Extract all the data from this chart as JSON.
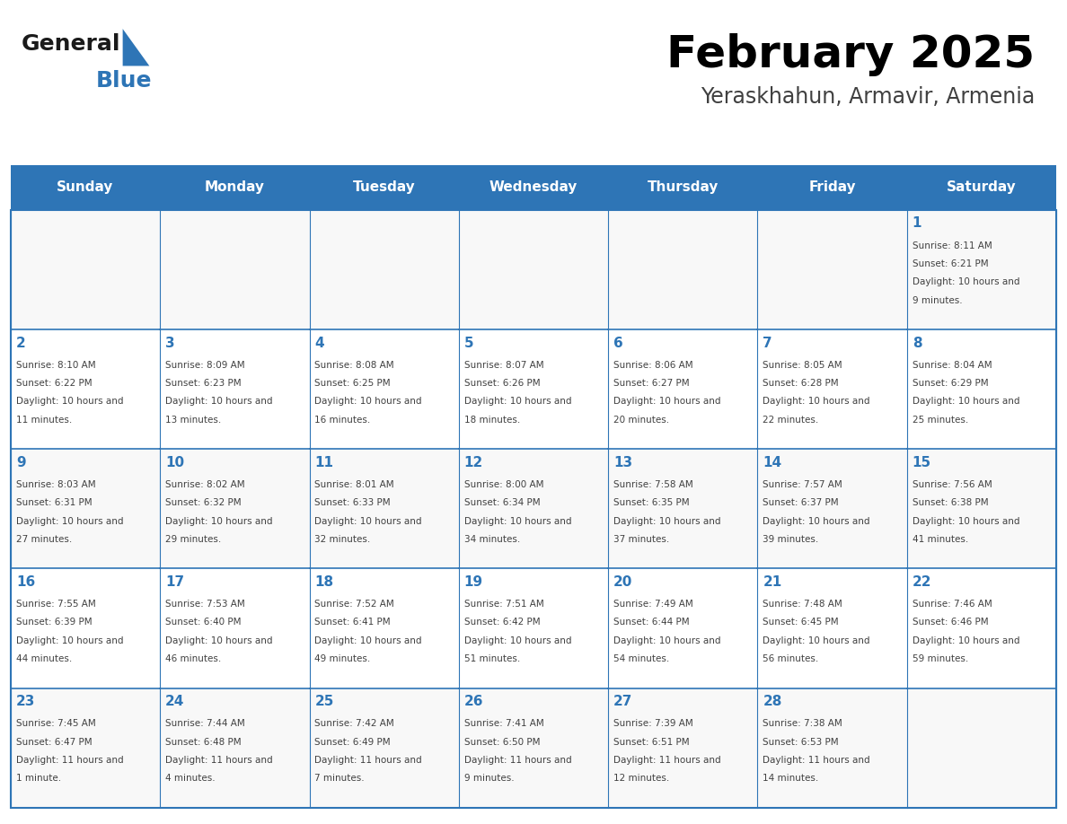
{
  "title": "February 2025",
  "subtitle": "Yeraskhahun, Armavir, Armenia",
  "header_bg": "#2E75B6",
  "header_text_color": "#FFFFFF",
  "day_names": [
    "Sunday",
    "Monday",
    "Tuesday",
    "Wednesday",
    "Thursday",
    "Friday",
    "Saturday"
  ],
  "cell_bg": "#FFFFFF",
  "cell_alt_bg": "#F2F2F2",
  "border_color": "#2E75B6",
  "day_num_color": "#2E75B6",
  "text_color": "#404040",
  "title_color": "#000000",
  "subtitle_color": "#404040",
  "logo_general_color": "#1A1A1A",
  "logo_blue_color": "#2E75B6",
  "calendar": [
    [
      null,
      null,
      null,
      null,
      null,
      null,
      {
        "day": 1,
        "sunrise": "8:11 AM",
        "sunset": "6:21 PM",
        "daylight": "10 hours and 9 minutes."
      }
    ],
    [
      {
        "day": 2,
        "sunrise": "8:10 AM",
        "sunset": "6:22 PM",
        "daylight": "10 hours and 11 minutes."
      },
      {
        "day": 3,
        "sunrise": "8:09 AM",
        "sunset": "6:23 PM",
        "daylight": "10 hours and 13 minutes."
      },
      {
        "day": 4,
        "sunrise": "8:08 AM",
        "sunset": "6:25 PM",
        "daylight": "10 hours and 16 minutes."
      },
      {
        "day": 5,
        "sunrise": "8:07 AM",
        "sunset": "6:26 PM",
        "daylight": "10 hours and 18 minutes."
      },
      {
        "day": 6,
        "sunrise": "8:06 AM",
        "sunset": "6:27 PM",
        "daylight": "10 hours and 20 minutes."
      },
      {
        "day": 7,
        "sunrise": "8:05 AM",
        "sunset": "6:28 PM",
        "daylight": "10 hours and 22 minutes."
      },
      {
        "day": 8,
        "sunrise": "8:04 AM",
        "sunset": "6:29 PM",
        "daylight": "10 hours and 25 minutes."
      }
    ],
    [
      {
        "day": 9,
        "sunrise": "8:03 AM",
        "sunset": "6:31 PM",
        "daylight": "10 hours and 27 minutes."
      },
      {
        "day": 10,
        "sunrise": "8:02 AM",
        "sunset": "6:32 PM",
        "daylight": "10 hours and 29 minutes."
      },
      {
        "day": 11,
        "sunrise": "8:01 AM",
        "sunset": "6:33 PM",
        "daylight": "10 hours and 32 minutes."
      },
      {
        "day": 12,
        "sunrise": "8:00 AM",
        "sunset": "6:34 PM",
        "daylight": "10 hours and 34 minutes."
      },
      {
        "day": 13,
        "sunrise": "7:58 AM",
        "sunset": "6:35 PM",
        "daylight": "10 hours and 37 minutes."
      },
      {
        "day": 14,
        "sunrise": "7:57 AM",
        "sunset": "6:37 PM",
        "daylight": "10 hours and 39 minutes."
      },
      {
        "day": 15,
        "sunrise": "7:56 AM",
        "sunset": "6:38 PM",
        "daylight": "10 hours and 41 minutes."
      }
    ],
    [
      {
        "day": 16,
        "sunrise": "7:55 AM",
        "sunset": "6:39 PM",
        "daylight": "10 hours and 44 minutes."
      },
      {
        "day": 17,
        "sunrise": "7:53 AM",
        "sunset": "6:40 PM",
        "daylight": "10 hours and 46 minutes."
      },
      {
        "day": 18,
        "sunrise": "7:52 AM",
        "sunset": "6:41 PM",
        "daylight": "10 hours and 49 minutes."
      },
      {
        "day": 19,
        "sunrise": "7:51 AM",
        "sunset": "6:42 PM",
        "daylight": "10 hours and 51 minutes."
      },
      {
        "day": 20,
        "sunrise": "7:49 AM",
        "sunset": "6:44 PM",
        "daylight": "10 hours and 54 minutes."
      },
      {
        "day": 21,
        "sunrise": "7:48 AM",
        "sunset": "6:45 PM",
        "daylight": "10 hours and 56 minutes."
      },
      {
        "day": 22,
        "sunrise": "7:46 AM",
        "sunset": "6:46 PM",
        "daylight": "10 hours and 59 minutes."
      }
    ],
    [
      {
        "day": 23,
        "sunrise": "7:45 AM",
        "sunset": "6:47 PM",
        "daylight": "11 hours and 1 minute."
      },
      {
        "day": 24,
        "sunrise": "7:44 AM",
        "sunset": "6:48 PM",
        "daylight": "11 hours and 4 minutes."
      },
      {
        "day": 25,
        "sunrise": "7:42 AM",
        "sunset": "6:49 PM",
        "daylight": "11 hours and 7 minutes."
      },
      {
        "day": 26,
        "sunrise": "7:41 AM",
        "sunset": "6:50 PM",
        "daylight": "11 hours and 9 minutes."
      },
      {
        "day": 27,
        "sunrise": "7:39 AM",
        "sunset": "6:51 PM",
        "daylight": "11 hours and 12 minutes."
      },
      {
        "day": 28,
        "sunrise": "7:38 AM",
        "sunset": "6:53 PM",
        "daylight": "11 hours and 14 minutes."
      },
      null
    ]
  ]
}
